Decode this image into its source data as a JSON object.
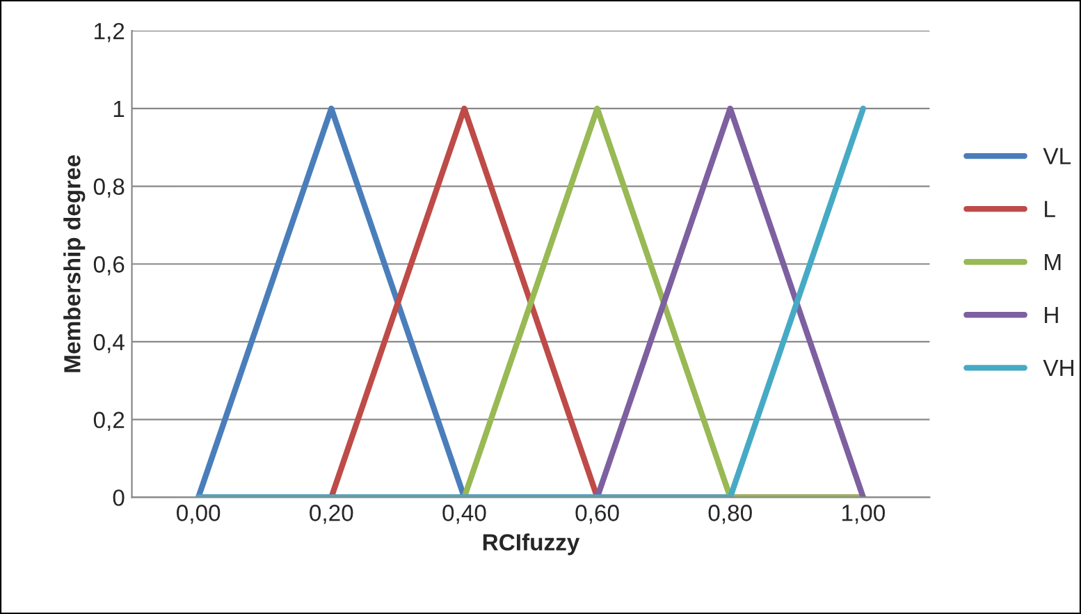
{
  "chart_data": {
    "type": "line",
    "xlabel": "RCIfuzzy",
    "ylabel": "Membership degree",
    "categories": [
      "0,00",
      "0,20",
      "0,40",
      "0,60",
      "0,80",
      "1,00"
    ],
    "series": [
      {
        "name": "VL",
        "color": "#4a7ebb",
        "values": [
          0,
          1,
          0,
          0,
          0,
          0
        ]
      },
      {
        "name": "L",
        "color": "#be4b48",
        "values": [
          0,
          0,
          1,
          0,
          0,
          0
        ]
      },
      {
        "name": "M",
        "color": "#98b954",
        "values": [
          0,
          0,
          0,
          1,
          0,
          0
        ]
      },
      {
        "name": "H",
        "color": "#7d60a0",
        "values": [
          0,
          0,
          0,
          0,
          1,
          0
        ]
      },
      {
        "name": "VH",
        "color": "#46aac5",
        "values": [
          0,
          0,
          0,
          0,
          0,
          1
        ]
      }
    ],
    "ylim": [
      0,
      1.2
    ],
    "yticks": [
      0,
      {
        "value": 0.2,
        "label": "0,2"
      },
      {
        "value": 0.4,
        "label": "0,4"
      },
      {
        "value": 0.6,
        "label": "0,6"
      },
      {
        "value": 0.8,
        "label": "0,8"
      },
      1,
      {
        "value": 1.2,
        "label": "1,2"
      }
    ],
    "grid": "y",
    "legend": "right",
    "marker": "none",
    "line_style": "solid"
  }
}
